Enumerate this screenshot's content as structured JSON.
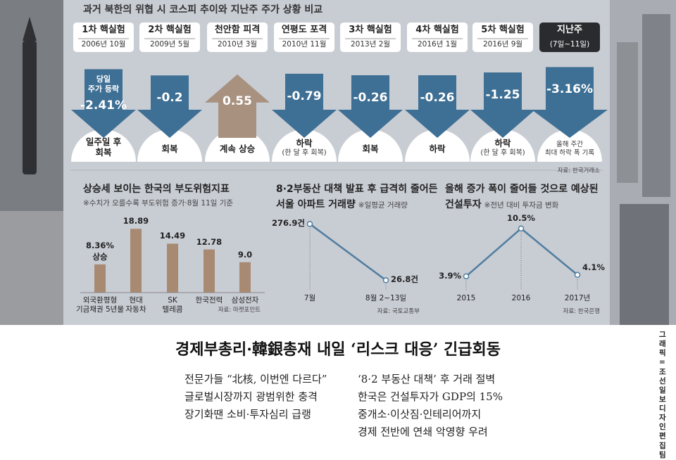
{
  "infographic": {
    "title": "과거 북한의 위협 시 코스피 추이와 지난주 주가 상황 비교",
    "annotation": "당일\n주가 등락",
    "source": "자료: 한국거래소",
    "events": [
      {
        "name": "1차 핵실험",
        "date": "2006년 10월",
        "value": -2.41,
        "value_label": "-2.41%",
        "outcome": "일주일 후\n회복"
      },
      {
        "name": "2차 핵실험",
        "date": "2009년 5월",
        "value": -0.2,
        "value_label": "-0.2",
        "outcome": "회복"
      },
      {
        "name": "천안함 피격",
        "date": "2010년 3월",
        "value": 0.55,
        "value_label": "0.55",
        "outcome": "계속 상승"
      },
      {
        "name": "연평도 포격",
        "date": "2010년 11월",
        "value": -0.79,
        "value_label": "-0.79",
        "outcome": "하락",
        "note": "(한 달 후 회복)"
      },
      {
        "name": "3차 핵실험",
        "date": "2013년 2월",
        "value": -0.26,
        "value_label": "-0.26",
        "outcome": "회복"
      },
      {
        "name": "4차 핵실험",
        "date": "2016년 1월",
        "value": -0.26,
        "value_label": "-0.26",
        "outcome": "하락"
      },
      {
        "name": "5차 핵실험",
        "date": "2016년 9월",
        "value": -1.25,
        "value_label": "-1.25",
        "outcome": "하락",
        "note": "(한 달 후 회복)"
      },
      {
        "name": "지난주",
        "date": "(7일~11일)",
        "value": -3.16,
        "value_label": "-3.16%",
        "outcome": "올해 주간\n최대 하락 폭 기록"
      }
    ]
  },
  "chart_data": [
    {
      "type": "bar",
      "title": "상승세 보이는 한국의 부도위험지표",
      "subtitle": "※수치가 오를수록 부도위험 증가·8월 11일 기준",
      "categories": [
        "외국환평형\n기금채권 5년물",
        "현대\n자동차",
        "SK\n텔레콤",
        "한국전력",
        "삼성전자"
      ],
      "values": [
        8.36,
        18.89,
        14.49,
        12.78,
        9.0
      ],
      "value_labels": [
        "8.36%",
        "18.89",
        "14.49",
        "12.78",
        "9.0"
      ],
      "annotation": "상승",
      "source": "자료: 마켓포인트",
      "color": "#a88a72"
    },
    {
      "type": "line",
      "title": "8·2부동산 대책 발표 후 급격히 줄어든\n서울 아파트 거래량",
      "subtitle": "※일평균 거래량",
      "categories": [
        "7월",
        "8월 2~13일"
      ],
      "values": [
        276.9,
        26.8
      ],
      "value_labels": [
        "276.9건",
        "26.8건"
      ],
      "source": "자료: 국토교통부",
      "color": "#4f7da0"
    },
    {
      "type": "line",
      "title": "올해 증가 폭이 줄어들 것으로 예상된\n건설투자",
      "subtitle": "※전년 대비 투자금 변화",
      "categories": [
        "2015",
        "2016",
        "2017년"
      ],
      "values": [
        3.9,
        10.5,
        4.1
      ],
      "value_labels": [
        "3.9%",
        "10.5%",
        "4.1%"
      ],
      "source": "자료: 한국은행",
      "color": "#4f7da0"
    }
  ],
  "credit": "그래픽 = 조선일보 디자인편집팀",
  "article": {
    "headline": "경제부총리·韓銀총재 내일 ‘리스크 대응’ 긴급회동",
    "left": [
      "전문가들 “北核, 이번엔 다르다”",
      "글로벌시장까지 광범위한 충격",
      "장기화땐 소비·투자심리 급랭"
    ],
    "right": [
      "‘8·2 부동산 대책’ 후 거래 절벽",
      "한국은 건설투자가 GDP의 15%",
      "중개소·이삿짐·인테리어까지",
      "경제 전반에 연쇄 악영향 우려"
    ]
  }
}
